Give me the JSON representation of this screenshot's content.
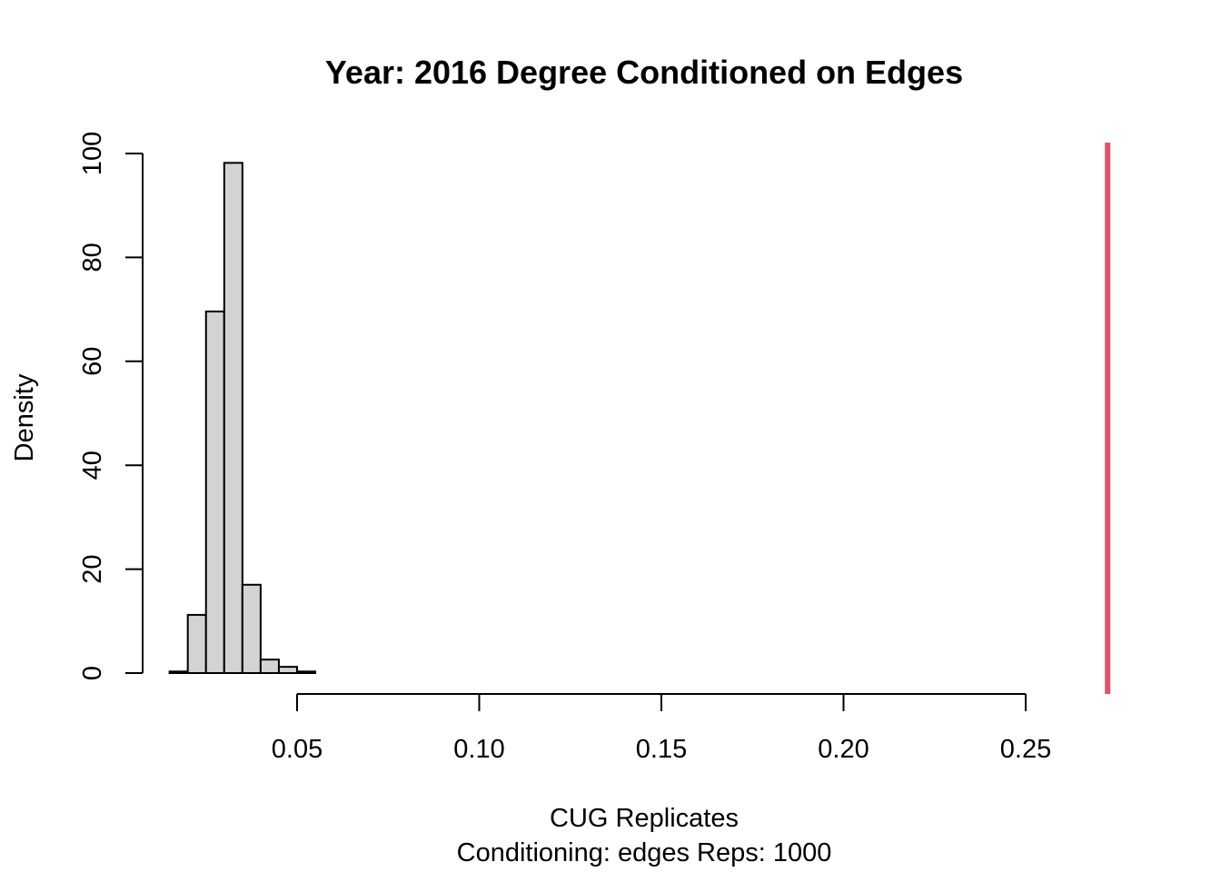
{
  "chart_data": {
    "type": "bar",
    "title": "Year: 2016  Degree Conditioned on Edges",
    "xlabel": "CUG Replicates",
    "sublabel": "Conditioning: edges Reps: 1000",
    "ylabel": "Density",
    "xlim": [
      0.015,
      0.275
    ],
    "ylim": [
      0,
      100
    ],
    "x_ticks": [
      "0.05",
      "0.10",
      "0.15",
      "0.20",
      "0.25"
    ],
    "x_tick_values": [
      0.05,
      0.1,
      0.15,
      0.2,
      0.25
    ],
    "y_ticks": [
      "0",
      "20",
      "40",
      "60",
      "80",
      "100"
    ],
    "y_tick_values": [
      0,
      20,
      40,
      60,
      80,
      100
    ],
    "bin_width": 0.005,
    "bins": [
      {
        "start": 0.015,
        "value": 0.3
      },
      {
        "start": 0.02,
        "value": 11.2
      },
      {
        "start": 0.025,
        "value": 69.6
      },
      {
        "start": 0.03,
        "value": 98.2
      },
      {
        "start": 0.035,
        "value": 17.0
      },
      {
        "start": 0.04,
        "value": 2.6
      },
      {
        "start": 0.045,
        "value": 1.2
      },
      {
        "start": 0.05,
        "value": 0.3
      }
    ],
    "observed_value": 0.2725,
    "observed_color": "#df536b",
    "bar_color": "#d3d3d3",
    "grid": false,
    "legend": "none"
  }
}
